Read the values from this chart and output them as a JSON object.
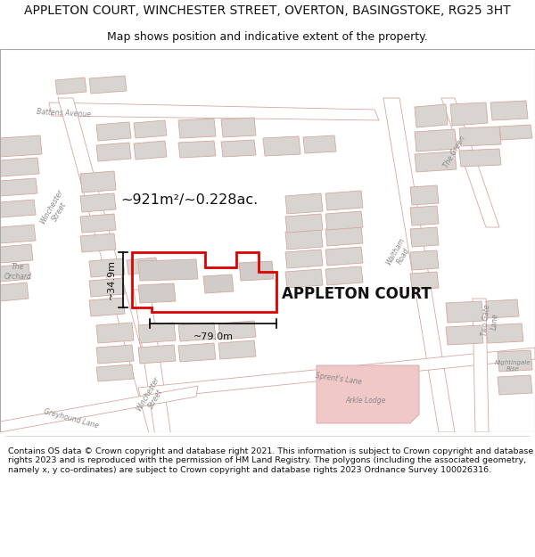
{
  "title_line1": "APPLETON COURT, WINCHESTER STREET, OVERTON, BASINGSTOKE, RG25 3HT",
  "title_line2": "Map shows position and indicative extent of the property.",
  "property_label": "APPLETON COURT",
  "measurement_area": "~921m²/~0.228ac.",
  "measurement_width": "~79.0m",
  "measurement_height": "~34.9m",
  "footer_text": "Contains OS data © Crown copyright and database right 2021. This information is subject to Crown copyright and database rights 2023 and is reproduced with the permission of HM Land Registry. The polygons (including the associated geometry, namely x, y co-ordinates) are subject to Crown copyright and database rights 2023 Ordnance Survey 100026316.",
  "map_bg": "#ffffff",
  "map_fill": "#f7f4f2",
  "building_fill": "#d8d4d0",
  "building_stroke": "#d4a8a0",
  "road_fill": "#ffffff",
  "road_stroke": "#d4a8a0",
  "road_stroke_lw": 0.6,
  "property_stroke": "#dd0000",
  "property_stroke_lw": 2.0,
  "arkle_fill": "#f0c8c8",
  "arkle_stroke": "#d4a8a0",
  "label_color": "#888888",
  "title_fontsize": 10,
  "subtitle_fontsize": 9,
  "footer_fontsize": 6.8
}
